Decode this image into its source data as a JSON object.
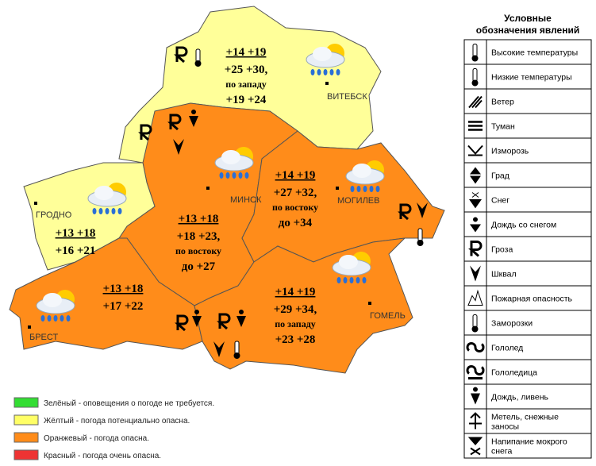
{
  "regions": [
    {
      "city": "ВИТЕБСК",
      "color": "#ffff99",
      "temps": [
        "+14 +19",
        "+25 +30,",
        "по западу",
        "+19 +24"
      ]
    },
    {
      "city": "МИНСК",
      "color": "#ff8c1a",
      "temps": [
        "+13 +18",
        "+18 +23,",
        "по востоку",
        "до +27"
      ]
    },
    {
      "city": "МОГИЛЕВ",
      "color": "#ff8c1a",
      "temps": [
        "+14 +19",
        "+27 +32,",
        "по востоку",
        "до +34"
      ]
    },
    {
      "city": "ГРОДНО",
      "color": "#ffff99",
      "temps": [
        "+13 +18",
        "+16 +21"
      ]
    },
    {
      "city": "БРЕСТ",
      "color": "#ff8c1a",
      "temps": [
        "+13 +18",
        "+17 +22"
      ]
    },
    {
      "city": "ГОМЕЛЬ",
      "color": "#ff8c1a",
      "temps": [
        "+14 +19",
        "+29 +34,",
        "по западу",
        "+23 +28"
      ]
    }
  ],
  "levels": [
    {
      "color": "#33dd33",
      "text": "Зелёный - оповещения о погоде не требуется."
    },
    {
      "color": "#ffff66",
      "text": "Жёлтый - погода потенциально опасна."
    },
    {
      "color": "#ff8c1a",
      "text": "Оранжевый - погода опасна."
    },
    {
      "color": "#ee3333",
      "text": "Красный - погода очень опасна."
    }
  ],
  "legend": {
    "title_lines": [
      "Условные",
      "обозначения явлений"
    ],
    "items": [
      [
        "Высокие температуры"
      ],
      [
        "Низкие температуры"
      ],
      [
        "Ветер"
      ],
      [
        "Туман"
      ],
      [
        "Изморозь"
      ],
      [
        "Град"
      ],
      [
        "Снег"
      ],
      [
        "Дождь со снегом"
      ],
      [
        "Гроза"
      ],
      [
        "Шквал"
      ],
      [
        "Пожарная опасность"
      ],
      [
        "Заморозки"
      ],
      [
        "Гололед"
      ],
      [
        "Гололедица"
      ],
      [
        "Дождь, ливень"
      ],
      [
        "Метель, снежные",
        "заносы"
      ],
      [
        "Напипание мокрого",
        "снега"
      ]
    ]
  }
}
